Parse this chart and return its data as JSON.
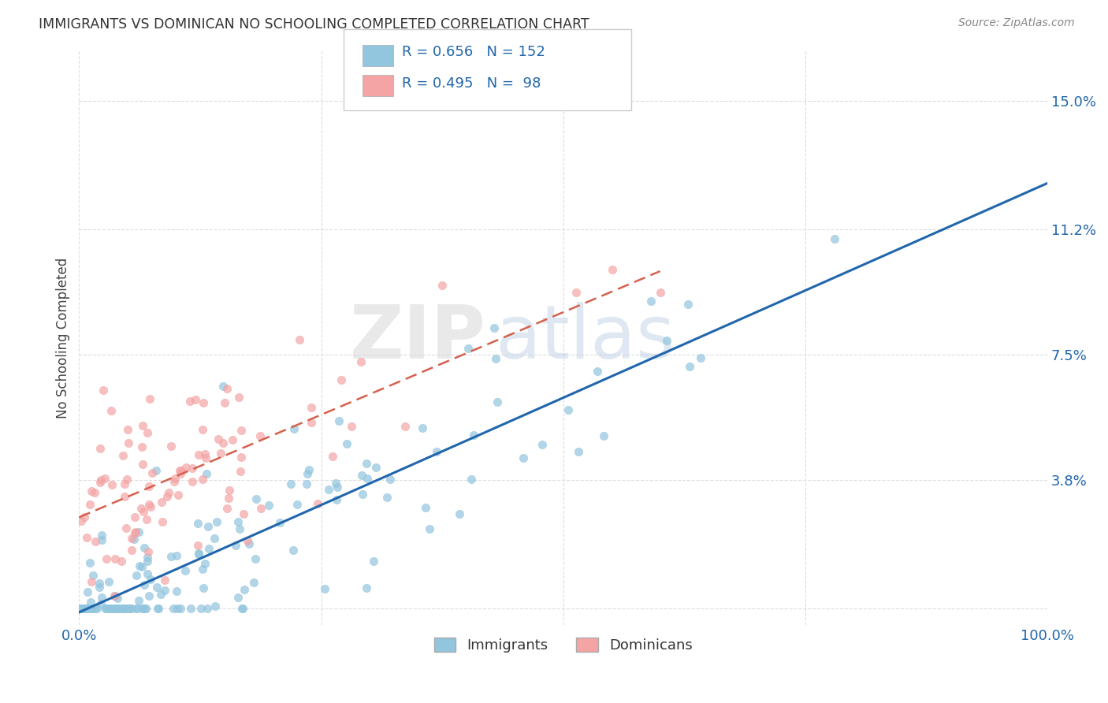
{
  "title": "IMMIGRANTS VS DOMINICAN NO SCHOOLING COMPLETED CORRELATION CHART",
  "source": "Source: ZipAtlas.com",
  "ylabel": "No Schooling Completed",
  "yticks": [
    0.0,
    0.038,
    0.075,
    0.112,
    0.15
  ],
  "ytick_labels": [
    "",
    "3.8%",
    "7.5%",
    "11.2%",
    "15.0%"
  ],
  "xlim": [
    0.0,
    1.0
  ],
  "ylim": [
    -0.005,
    0.165
  ],
  "immigrants_color": "#92c5de",
  "dominicans_color": "#f4a4a4",
  "immigrants_line_color": "#2166ac",
  "dominicans_line_color": "#d6604d",
  "r_immigrants": 0.656,
  "n_immigrants": 152,
  "r_dominicans": 0.495,
  "n_dominicans": 98,
  "legend_label_immigrants": "Immigrants",
  "legend_label_dominicans": "Dominicans",
  "watermark_zip": "ZIP",
  "watermark_atlas": "atlas",
  "background_color": "#ffffff",
  "grid_color": "#dddddd",
  "title_color": "#333333",
  "axis_label_color": "#2166ac",
  "source_color": "#888888"
}
